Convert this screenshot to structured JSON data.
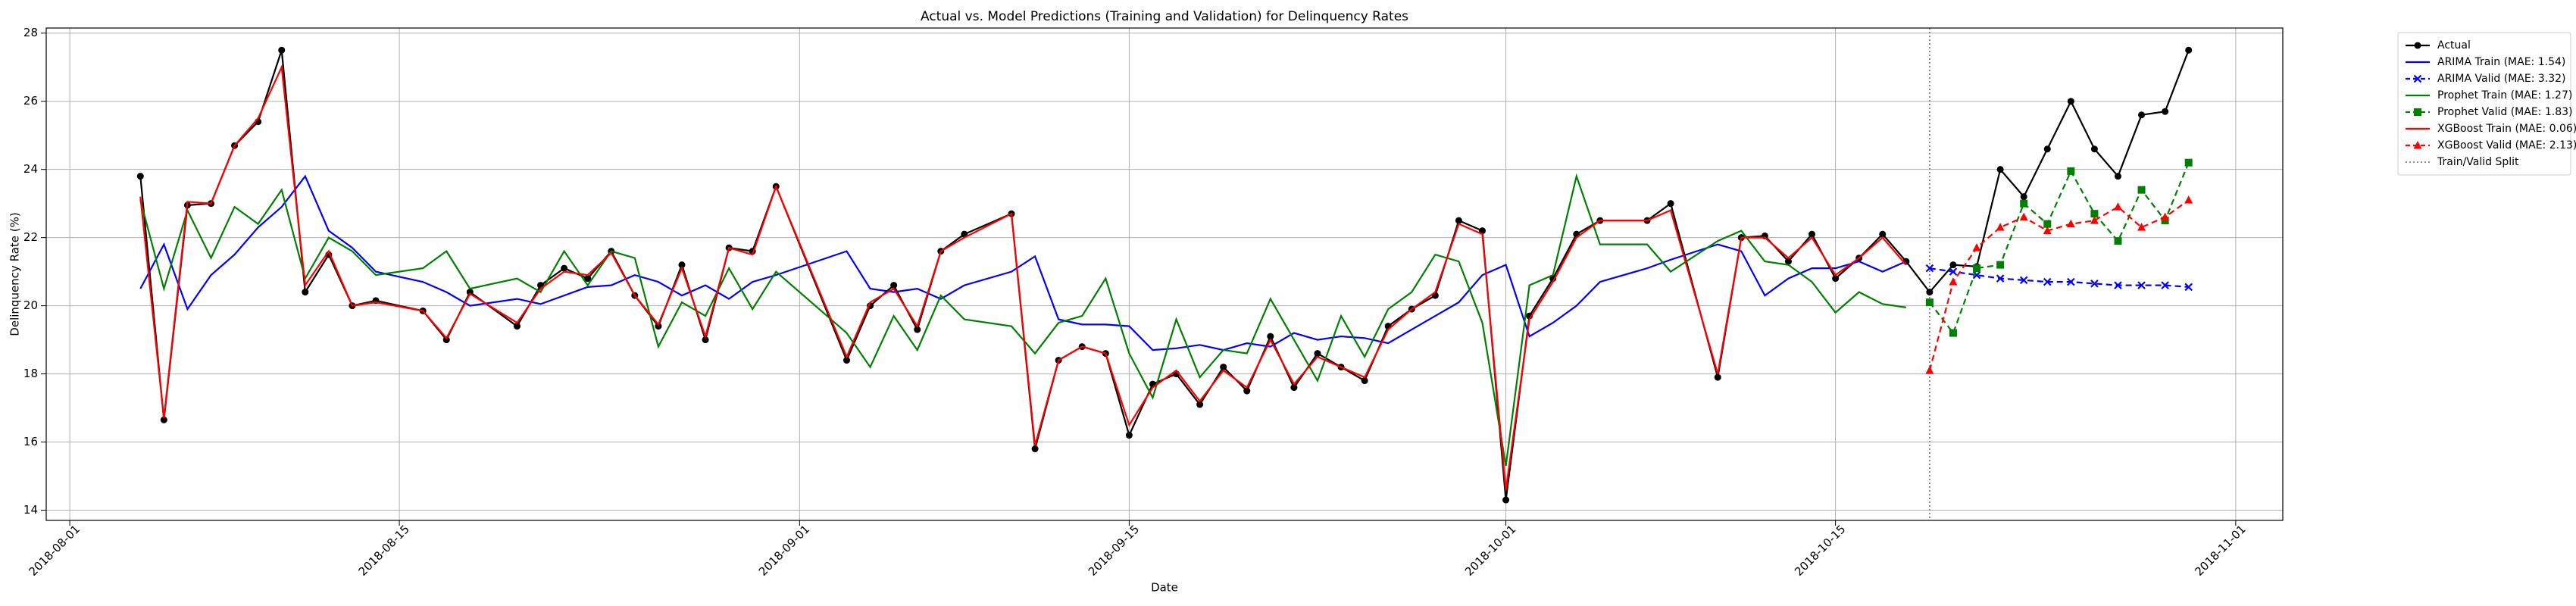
{
  "chart_data": {
    "type": "line",
    "title": "Actual vs. Model Predictions (Training and Validation) for Delinquency Rates",
    "xlabel": "Date",
    "ylabel": "Delinquency Rate (%)",
    "x": [
      "2018-08-04",
      "2018-08-05",
      "2018-08-06",
      "2018-08-07",
      "2018-08-08",
      "2018-08-09",
      "2018-08-10",
      "2018-08-11",
      "2018-08-12",
      "2018-08-13",
      "2018-08-14",
      "2018-08-16",
      "2018-08-17",
      "2018-08-18",
      "2018-08-20",
      "2018-08-21",
      "2018-08-22",
      "2018-08-23",
      "2018-08-24",
      "2018-08-25",
      "2018-08-26",
      "2018-08-27",
      "2018-08-28",
      "2018-08-29",
      "2018-08-30",
      "2018-08-31",
      "2018-09-03",
      "2018-09-04",
      "2018-09-05",
      "2018-09-06",
      "2018-09-07",
      "2018-09-08",
      "2018-09-10",
      "2018-09-11",
      "2018-09-12",
      "2018-09-13",
      "2018-09-14",
      "2018-09-15",
      "2018-09-16",
      "2018-09-17",
      "2018-09-18",
      "2018-09-19",
      "2018-09-20",
      "2018-09-21",
      "2018-09-22",
      "2018-09-23",
      "2018-09-24",
      "2018-09-25",
      "2018-09-26",
      "2018-09-27",
      "2018-09-28",
      "2018-09-29",
      "2018-09-30",
      "2018-10-01",
      "2018-10-02",
      "2018-10-03",
      "2018-10-04",
      "2018-10-05",
      "2018-10-07",
      "2018-10-08",
      "2018-10-10",
      "2018-10-11",
      "2018-10-12",
      "2018-10-13",
      "2018-10-14",
      "2018-10-15",
      "2018-10-16",
      "2018-10-17",
      "2018-10-18",
      "2018-10-19",
      "2018-10-20",
      "2018-10-21",
      "2018-10-22",
      "2018-10-23",
      "2018-10-24",
      "2018-10-25",
      "2018-10-26",
      "2018-10-27",
      "2018-10-28",
      "2018-10-29",
      "2018-10-30"
    ],
    "series": [
      {
        "name": "Actual",
        "color": "#000000",
        "style": "solid",
        "marker": "o",
        "values": [
          23.8,
          16.65,
          22.95,
          23.0,
          24.7,
          25.4,
          27.5,
          20.4,
          21.5,
          20.0,
          20.15,
          19.85,
          19.0,
          20.4,
          19.4,
          20.6,
          21.1,
          20.8,
          21.6,
          20.3,
          19.4,
          21.2,
          19.0,
          21.7,
          21.6,
          23.5,
          18.4,
          20.0,
          20.6,
          19.3,
          21.6,
          22.1,
          22.7,
          15.8,
          18.4,
          18.8,
          18.6,
          16.2,
          17.7,
          18.0,
          17.1,
          18.2,
          17.5,
          19.1,
          17.6,
          18.6,
          18.2,
          17.8,
          19.4,
          19.9,
          20.3,
          22.5,
          22.2,
          14.3,
          19.7,
          20.8,
          22.1,
          22.5,
          22.5,
          23.0,
          17.9,
          22.0,
          22.05,
          21.3,
          22.1,
          20.8,
          21.4,
          22.1,
          21.3,
          20.4,
          21.2,
          21.15,
          24.0,
          23.2,
          24.6,
          26.0,
          24.6,
          23.8,
          25.6,
          25.7,
          27.5
        ]
      },
      {
        "name": "ARIMA Train (MAE: 1.54)",
        "color": "#0000ff",
        "style": "solid",
        "marker": "none",
        "values": [
          20.5,
          21.8,
          19.9,
          20.9,
          21.5,
          22.3,
          22.9,
          23.8,
          22.2,
          21.7,
          21.0,
          20.7,
          20.4,
          20.0,
          20.2,
          20.05,
          20.3,
          20.55,
          20.6,
          20.9,
          20.7,
          20.3,
          20.6,
          20.2,
          20.7,
          20.9,
          21.6,
          20.5,
          20.4,
          20.5,
          20.2,
          20.6,
          21.0,
          21.45,
          19.6,
          19.45,
          19.45,
          19.4,
          18.7,
          18.75,
          18.85,
          18.7,
          18.9,
          18.8,
          19.2,
          19.0,
          19.1,
          19.05,
          18.9,
          19.3,
          19.7,
          20.1,
          20.9,
          21.2,
          19.1,
          19.5,
          20.0,
          20.7,
          21.1,
          21.35,
          21.8,
          21.6,
          20.3,
          20.8,
          21.1,
          21.1,
          21.3,
          21.0,
          21.3,
          null,
          null,
          null,
          null,
          null,
          null,
          null,
          null,
          null,
          null,
          null,
          null
        ]
      },
      {
        "name": "ARIMA Valid (MAE: 3.32)",
        "color": "#0000ff",
        "style": "dashed",
        "marker": "x",
        "values": [
          null,
          null,
          null,
          null,
          null,
          null,
          null,
          null,
          null,
          null,
          null,
          null,
          null,
          null,
          null,
          null,
          null,
          null,
          null,
          null,
          null,
          null,
          null,
          null,
          null,
          null,
          null,
          null,
          null,
          null,
          null,
          null,
          null,
          null,
          null,
          null,
          null,
          null,
          null,
          null,
          null,
          null,
          null,
          null,
          null,
          null,
          null,
          null,
          null,
          null,
          null,
          null,
          null,
          null,
          null,
          null,
          null,
          null,
          null,
          null,
          null,
          null,
          null,
          null,
          null,
          null,
          null,
          null,
          null,
          21.1,
          21.0,
          20.9,
          20.8,
          20.75,
          20.7,
          20.7,
          20.65,
          20.6,
          20.6,
          20.6,
          20.55
        ]
      },
      {
        "name": "Prophet Train (MAE: 1.27)",
        "color": "#008000",
        "style": "solid",
        "marker": "none",
        "values": [
          23.1,
          20.5,
          22.8,
          21.4,
          22.9,
          22.4,
          23.4,
          20.8,
          22.0,
          21.6,
          20.9,
          21.1,
          21.6,
          20.5,
          20.8,
          20.4,
          21.6,
          20.6,
          21.6,
          21.4,
          18.8,
          20.1,
          19.7,
          21.1,
          19.9,
          21.0,
          19.2,
          18.2,
          19.7,
          18.7,
          20.3,
          19.6,
          19.4,
          18.6,
          19.5,
          19.7,
          20.8,
          18.6,
          17.3,
          19.6,
          17.9,
          18.7,
          18.6,
          20.2,
          19.0,
          17.8,
          19.7,
          18.5,
          19.9,
          20.4,
          21.5,
          21.3,
          19.5,
          15.3,
          20.6,
          20.9,
          23.8,
          21.8,
          21.8,
          21.0,
          21.9,
          22.2,
          21.3,
          21.2,
          20.7,
          19.8,
          20.4,
          20.05,
          19.95,
          null,
          null,
          null,
          null,
          null,
          null,
          null,
          null,
          null,
          null,
          null,
          null
        ]
      },
      {
        "name": "Prophet Valid (MAE: 1.83)",
        "color": "#008000",
        "style": "dashed",
        "marker": "s",
        "values": [
          null,
          null,
          null,
          null,
          null,
          null,
          null,
          null,
          null,
          null,
          null,
          null,
          null,
          null,
          null,
          null,
          null,
          null,
          null,
          null,
          null,
          null,
          null,
          null,
          null,
          null,
          null,
          null,
          null,
          null,
          null,
          null,
          null,
          null,
          null,
          null,
          null,
          null,
          null,
          null,
          null,
          null,
          null,
          null,
          null,
          null,
          null,
          null,
          null,
          null,
          null,
          null,
          null,
          null,
          null,
          null,
          null,
          null,
          null,
          null,
          null,
          null,
          null,
          null,
          null,
          null,
          null,
          null,
          null,
          20.1,
          19.2,
          21.1,
          21.2,
          23.0,
          22.4,
          23.95,
          22.7,
          21.9,
          23.4,
          22.5,
          24.2
        ]
      },
      {
        "name": "XGBoost Train (MAE: 0.06)",
        "color": "#ff0000",
        "style": "solid",
        "marker": "none",
        "values": [
          23.2,
          16.7,
          23.05,
          23.0,
          24.7,
          25.5,
          27.0,
          20.6,
          21.6,
          20.0,
          20.1,
          19.85,
          19.05,
          20.35,
          19.5,
          20.5,
          21.0,
          20.9,
          21.55,
          20.3,
          19.45,
          21.1,
          19.1,
          21.7,
          21.5,
          23.5,
          18.5,
          20.1,
          20.5,
          19.4,
          21.6,
          22.0,
          22.7,
          15.9,
          18.4,
          18.8,
          18.6,
          16.5,
          17.6,
          18.1,
          17.2,
          18.1,
          17.6,
          19.0,
          17.7,
          18.5,
          18.2,
          17.9,
          19.3,
          19.9,
          20.4,
          22.4,
          22.1,
          14.6,
          19.6,
          20.7,
          22.0,
          22.5,
          22.5,
          22.8,
          18.0,
          22.0,
          22.0,
          21.4,
          22.0,
          20.9,
          21.4,
          22.0,
          21.2,
          null,
          null,
          null,
          null,
          null,
          null,
          null,
          null,
          null,
          null,
          null,
          null
        ]
      },
      {
        "name": "XGBoost Valid (MAE: 2.13)",
        "color": "#ff0000",
        "style": "dashed",
        "marker": "^",
        "values": [
          null,
          null,
          null,
          null,
          null,
          null,
          null,
          null,
          null,
          null,
          null,
          null,
          null,
          null,
          null,
          null,
          null,
          null,
          null,
          null,
          null,
          null,
          null,
          null,
          null,
          null,
          null,
          null,
          null,
          null,
          null,
          null,
          null,
          null,
          null,
          null,
          null,
          null,
          null,
          null,
          null,
          null,
          null,
          null,
          null,
          null,
          null,
          null,
          null,
          null,
          null,
          null,
          null,
          null,
          null,
          null,
          null,
          null,
          null,
          null,
          null,
          null,
          null,
          null,
          null,
          null,
          null,
          null,
          null,
          18.1,
          20.7,
          21.7,
          22.3,
          22.6,
          22.2,
          22.4,
          22.5,
          22.9,
          22.3,
          22.6,
          23.1
        ]
      }
    ],
    "split": {
      "name": "Train/Valid Split",
      "x": "2018-10-19",
      "color": "#808080"
    },
    "xlim": [
      "2018-07-31",
      "2018-11-03"
    ],
    "xticks": [
      "2018-08-01",
      "2018-08-15",
      "2018-09-01",
      "2018-09-15",
      "2018-10-01",
      "2018-10-15",
      "2018-11-01"
    ],
    "ylim": [
      13.7,
      28.15
    ],
    "yticks": [
      14,
      16,
      18,
      20,
      22,
      24,
      26,
      28
    ],
    "grid": true,
    "legend": "outside-upper-right"
  }
}
